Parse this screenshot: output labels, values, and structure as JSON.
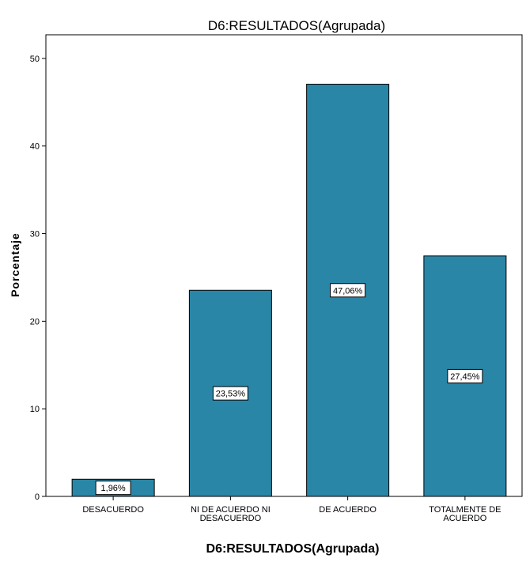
{
  "chart_data": {
    "type": "bar",
    "title": "D6:RESULTADOS(Agrupada)",
    "xlabel": "D6:RESULTADOS(Agrupada)",
    "ylabel": "Porcentaje",
    "categories": [
      [
        "DESACUERDO"
      ],
      [
        "NI DE ACUERDO NI",
        "DESACUERDO"
      ],
      [
        "DE ACUERDO"
      ],
      [
        "TOTALMENTE DE",
        "ACUERDO"
      ]
    ],
    "values": [
      1.96,
      23.53,
      47.06,
      27.45
    ],
    "data_labels": [
      "1,96%",
      "23,53%",
      "47,06%",
      "27,45%"
    ],
    "yticks": [
      0,
      10,
      20,
      30,
      40,
      50
    ],
    "ylim": [
      0,
      52.7
    ],
    "bar_color": "#2a86a6",
    "grid": false,
    "legend": "none"
  }
}
